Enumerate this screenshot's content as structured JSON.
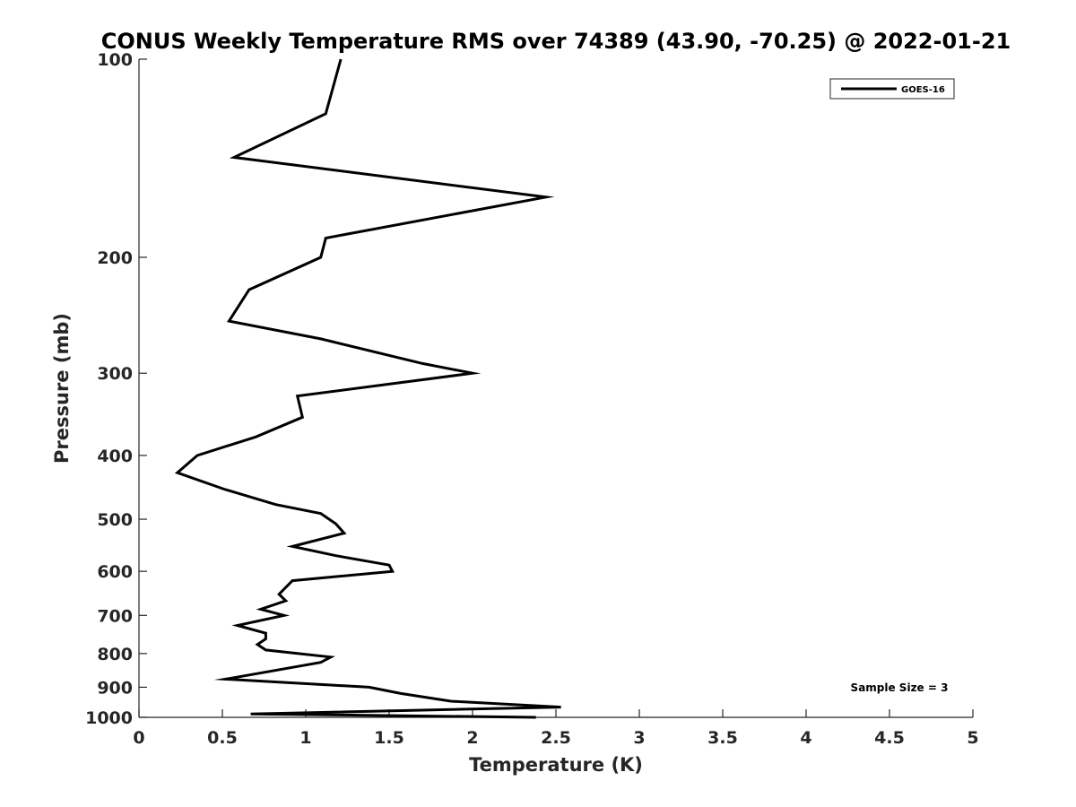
{
  "chart_data": {
    "type": "line",
    "title": "CONUS Weekly Temperature RMS over 74389 (43.90, -70.25) @ 2022-01-21",
    "xlabel": "Temperature (K)",
    "ylabel": "Pressure (mb)",
    "xlim": [
      0,
      5
    ],
    "ylim": [
      100,
      1000
    ],
    "y_scale": "log",
    "y_reversed": true,
    "x_ticks": [
      "0",
      "0.5",
      "1",
      "1.5",
      "2",
      "2.5",
      "3",
      "3.5",
      "4",
      "4.5",
      "5"
    ],
    "y_ticks": [
      "100",
      "200",
      "300",
      "400",
      "500",
      "600",
      "700",
      "800",
      "900",
      "1000"
    ],
    "grid": false,
    "legend_position": "top-right",
    "annotation": "Sample Size = 3",
    "series": [
      {
        "name": "GOES-16",
        "color": "#000000",
        "points": [
          [
            1.21,
            100
          ],
          [
            1.12,
            121
          ],
          [
            0.57,
            141
          ],
          [
            2.44,
            162
          ],
          [
            1.12,
            187
          ],
          [
            1.09,
            200
          ],
          [
            0.66,
            224
          ],
          [
            0.54,
            250
          ],
          [
            1.09,
            266
          ],
          [
            1.7,
            290
          ],
          [
            2.0,
            300
          ],
          [
            0.95,
            325
          ],
          [
            0.98,
            350
          ],
          [
            0.7,
            375
          ],
          [
            0.35,
            400
          ],
          [
            0.23,
            425
          ],
          [
            0.51,
            450
          ],
          [
            0.82,
            475
          ],
          [
            1.09,
            490
          ],
          [
            1.18,
            508
          ],
          [
            1.23,
            525
          ],
          [
            0.92,
            550
          ],
          [
            1.18,
            568
          ],
          [
            1.5,
            587
          ],
          [
            1.52,
            600
          ],
          [
            0.92,
            620
          ],
          [
            0.84,
            650
          ],
          [
            0.88,
            665
          ],
          [
            0.73,
            685
          ],
          [
            0.87,
            700
          ],
          [
            0.59,
            725
          ],
          [
            0.76,
            745
          ],
          [
            0.76,
            760
          ],
          [
            0.71,
            775
          ],
          [
            0.76,
            790
          ],
          [
            1.15,
            810
          ],
          [
            1.09,
            825
          ],
          [
            0.52,
            875
          ],
          [
            1.38,
            900
          ],
          [
            1.57,
            920
          ],
          [
            1.87,
            945
          ],
          [
            2.53,
            965
          ],
          [
            0.67,
            988
          ],
          [
            2.38,
            1000
          ]
        ]
      }
    ]
  }
}
